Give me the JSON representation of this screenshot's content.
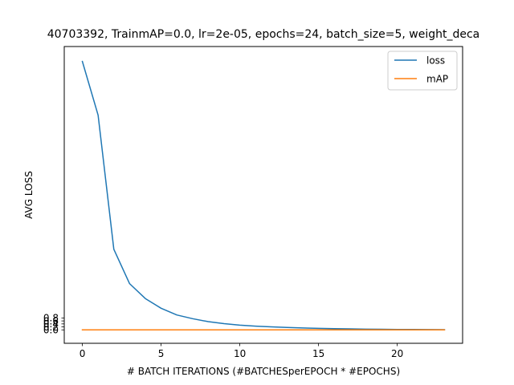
{
  "chart_data": {
    "type": "line",
    "title": "40703392, TrainmAP=0.0, lr=2e-05, epochs=24, batch_size=5, weight_deca",
    "xlabel": "# BATCH ITERATIONS (#BATCHESperEPOCH * #EPOCHS)",
    "ylabel": "AVG LOSS",
    "xlim": [
      -1.15,
      24.15
    ],
    "ylim": [
      -0.9,
      19.0
    ],
    "x_ticks": [
      0,
      5,
      10,
      15,
      20
    ],
    "y_ticks": [
      0.0,
      0.2,
      0.4,
      0.6,
      0.8
    ],
    "y_tick_labels": [
      "0.0",
      "0.2",
      "0.4",
      "0.6",
      "0.8"
    ],
    "x": [
      0,
      1,
      2,
      3,
      4,
      5,
      6,
      7,
      8,
      9,
      10,
      11,
      12,
      13,
      14,
      15,
      16,
      17,
      18,
      19,
      20,
      21,
      22,
      23
    ],
    "series": [
      {
        "name": "loss",
        "color": "#1f77b4",
        "values": [
          18.0,
          14.4,
          5.4,
          3.1,
          2.1,
          1.45,
          1.0,
          0.75,
          0.55,
          0.42,
          0.32,
          0.25,
          0.2,
          0.16,
          0.13,
          0.1,
          0.08,
          0.065,
          0.05,
          0.04,
          0.03,
          0.025,
          0.02,
          0.015
        ]
      },
      {
        "name": "mAP",
        "color": "#ff7f0e",
        "values": [
          0,
          0,
          0,
          0,
          0,
          0,
          0,
          0,
          0,
          0,
          0,
          0,
          0,
          0,
          0,
          0,
          0,
          0,
          0,
          0,
          0,
          0,
          0,
          0
        ]
      }
    ],
    "legend_position": "top-right",
    "grid": false
  }
}
